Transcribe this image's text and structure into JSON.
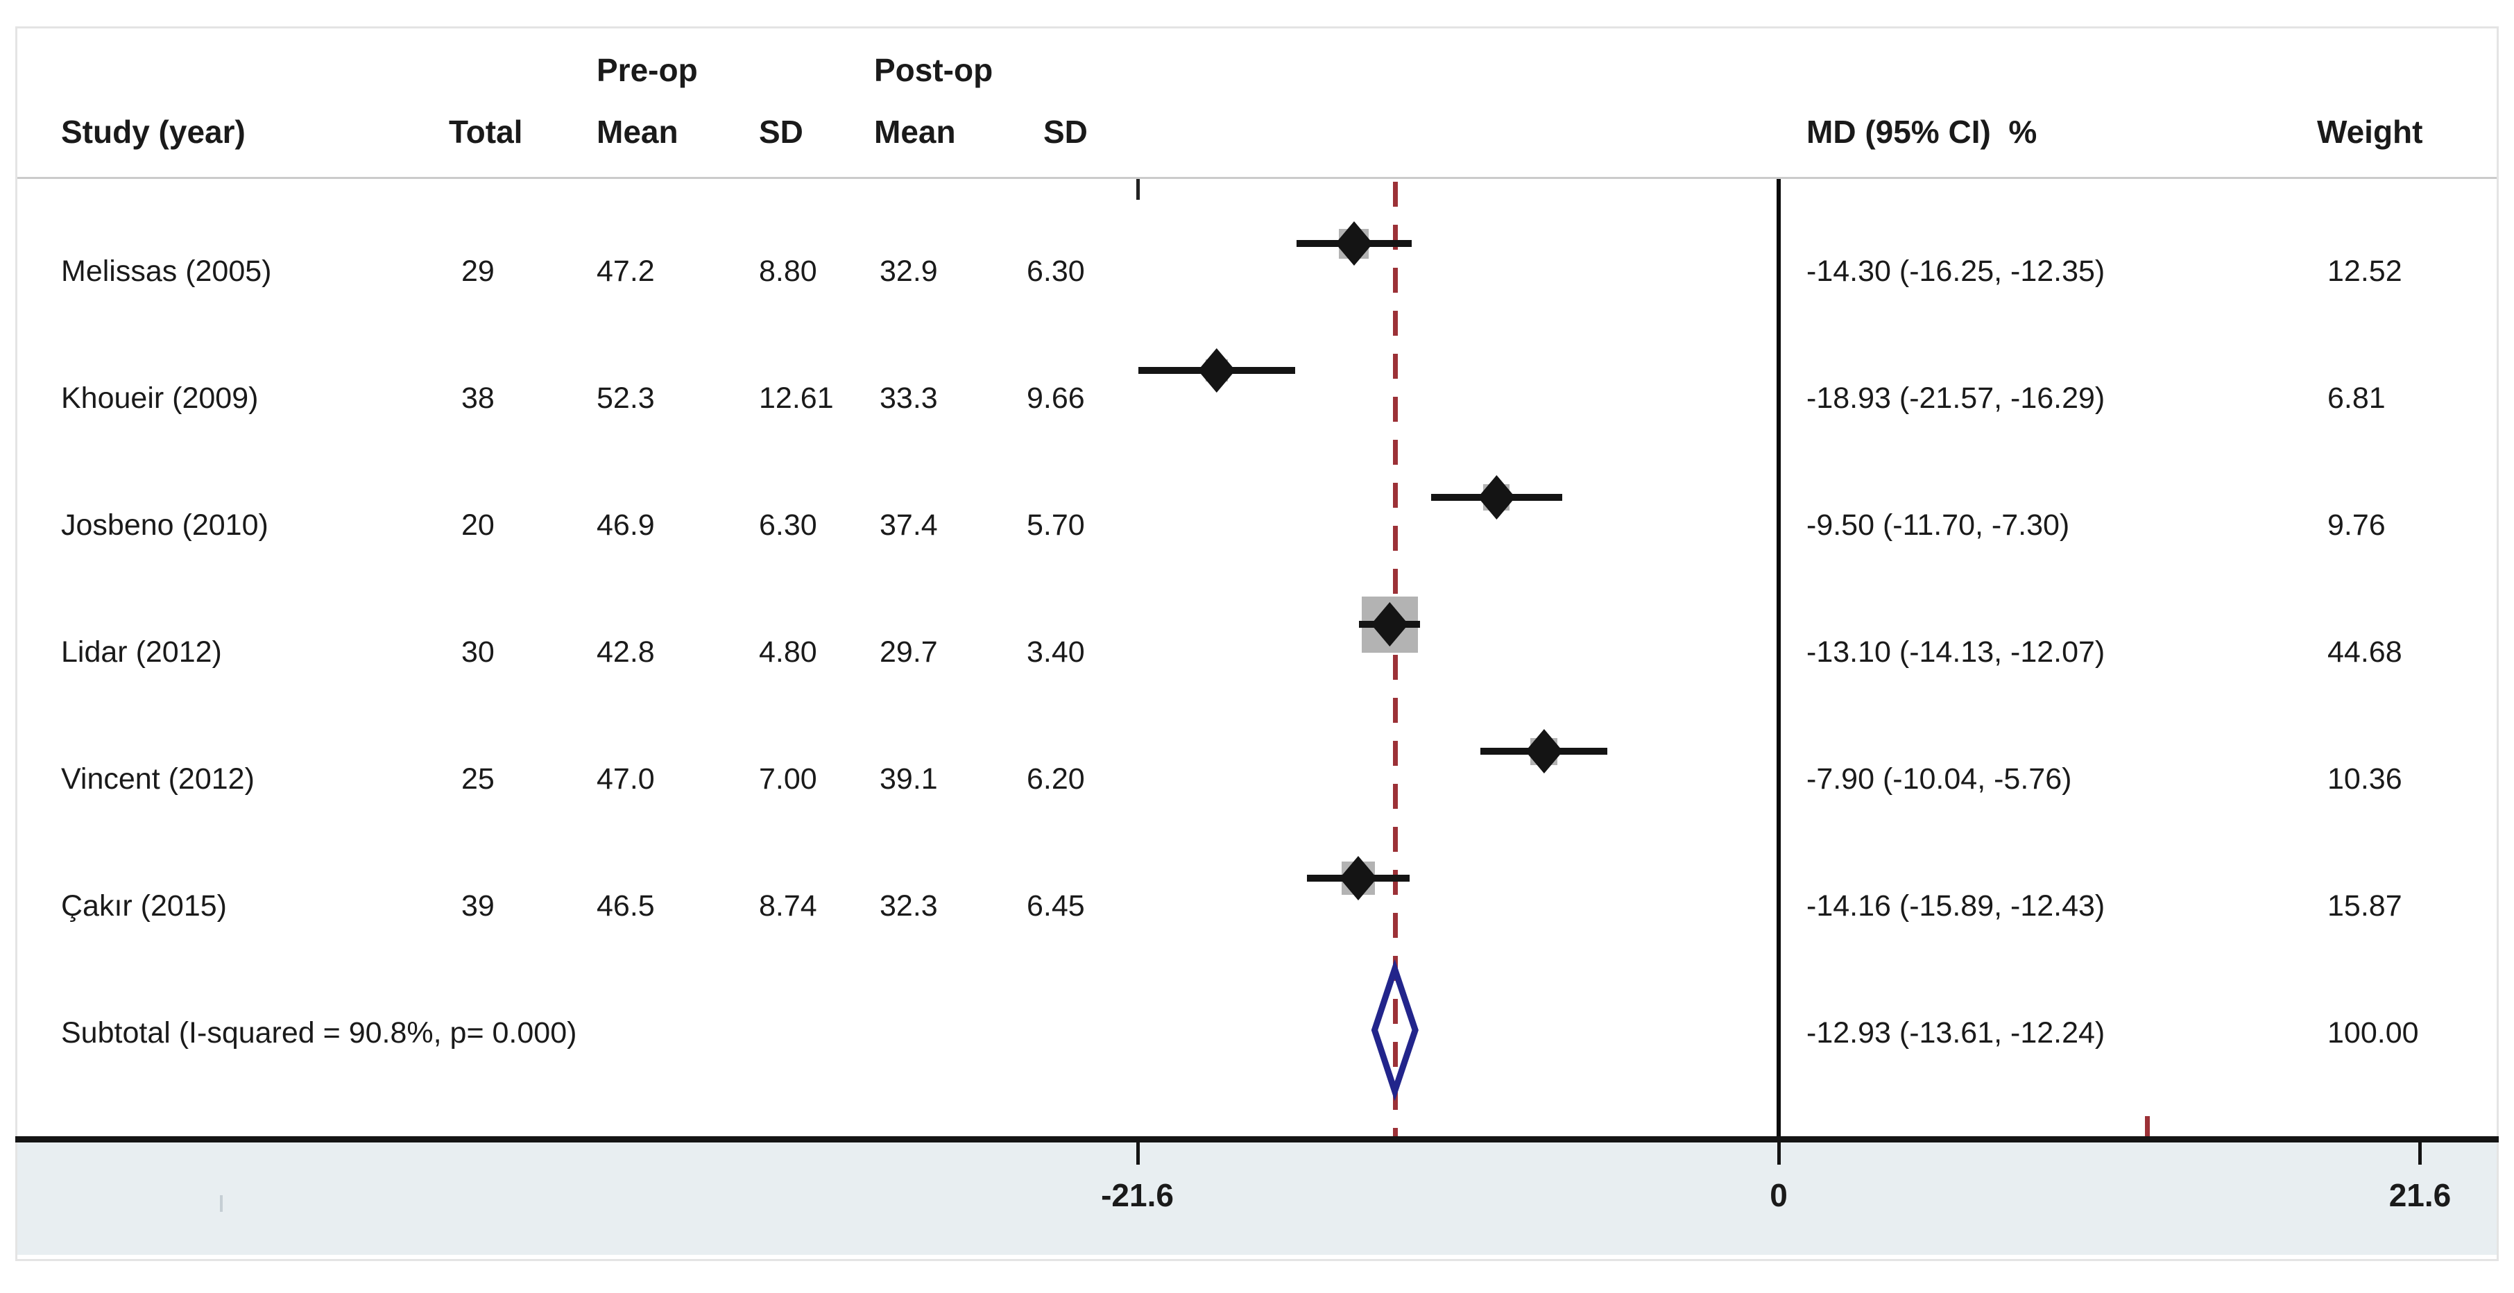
{
  "header": {
    "study": "Study (year)",
    "total": "Total",
    "preop": "Pre-op",
    "preop_mean": "Mean",
    "sd1": "SD",
    "postop": "Post-op",
    "postop_mean": "Mean",
    "sd2": "SD",
    "md": "MD (95% CI)  %",
    "weight": "Weight"
  },
  "chart_data": {
    "type": "forest",
    "effect_measure": "MD (95% CI)",
    "axis": {
      "ticks": [
        -21.6,
        0,
        21.6
      ],
      "tick_labels": [
        "-21.6",
        "0",
        "21.6"
      ],
      "xlim": [
        -21.6,
        21.6
      ],
      "zero_line": 0,
      "pooled_dashed_line": -12.93,
      "red_mark_value": 12.4
    },
    "studies": [
      {
        "label": "Melissas (2005)",
        "total": "29",
        "pre_mean": "47.2",
        "pre_sd": "8.80",
        "post_mean": "32.9",
        "post_sd": "6.30",
        "md": -14.3,
        "lo": -16.25,
        "hi": -12.35,
        "weight": 12.52,
        "md_text": "-14.30 (-16.25, -12.35)",
        "weight_text": "12.52"
      },
      {
        "label": "Khoueir (2009)",
        "total": "38",
        "pre_mean": "52.3",
        "pre_sd": "12.61",
        "post_mean": "33.3",
        "post_sd": "9.66",
        "md": -18.93,
        "lo": -21.57,
        "hi": -16.29,
        "weight": 6.81,
        "md_text": "-18.93 (-21.57, -16.29)",
        "weight_text": "6.81"
      },
      {
        "label": "Josbeno (2010)",
        "total": "20",
        "pre_mean": "46.9",
        "pre_sd": "6.30",
        "post_mean": "37.4",
        "post_sd": "5.70",
        "md": -9.5,
        "lo": -11.7,
        "hi": -7.3,
        "weight": 9.76,
        "md_text": "-9.50 (-11.70, -7.30)",
        "weight_text": "9.76"
      },
      {
        "label": "Lidar (2012)",
        "total": "30",
        "pre_mean": "42.8",
        "pre_sd": "4.80",
        "post_mean": "29.7",
        "post_sd": "3.40",
        "md": -13.1,
        "lo": -14.13,
        "hi": -12.07,
        "weight": 44.68,
        "md_text": "-13.10 (-14.13, -12.07)",
        "weight_text": "44.68"
      },
      {
        "label": "Vincent (2012)",
        "total": "25",
        "pre_mean": "47.0",
        "pre_sd": "7.00",
        "post_mean": "39.1",
        "post_sd": "6.20",
        "md": -7.9,
        "lo": -10.04,
        "hi": -5.76,
        "weight": 10.36,
        "md_text": "-7.90 (-10.04, -5.76)",
        "weight_text": "10.36"
      },
      {
        "label": "Çakır (2015)",
        "total": "39",
        "pre_mean": "46.5",
        "pre_sd": "8.74",
        "post_mean": "32.3",
        "post_sd": "6.45",
        "md": -14.16,
        "lo": -15.89,
        "hi": -12.43,
        "weight": 15.87,
        "md_text": "-14.16 (-15.89, -12.43)",
        "weight_text": "15.87"
      }
    ],
    "subtotal": {
      "label": "Subtotal (I-squared = 90.8%, p= 0.000)",
      "md": -12.93,
      "lo": -13.61,
      "hi": -12.24,
      "md_text": "-12.93 (-13.61, -12.24)",
      "weight_text": "100.00"
    }
  },
  "colors": {
    "square": "#b3b3b3",
    "ci_line": "#141414",
    "point": "#141414",
    "pooled_dashed": "#9c3137",
    "diamond_outline": "#22258b",
    "axis": "#141414",
    "band": "#e8eef1",
    "frame_border": "#e4e4e4",
    "divider": "#cbcbcb"
  }
}
